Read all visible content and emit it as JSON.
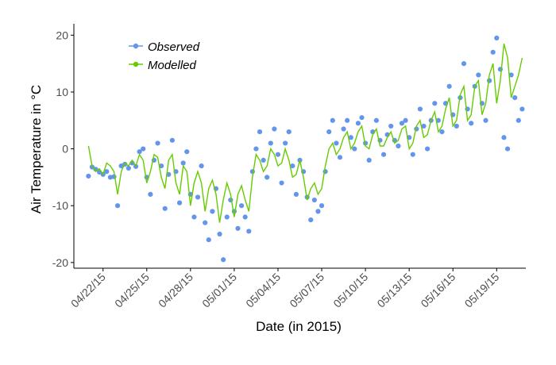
{
  "chart_data": {
    "type": "scatter",
    "title": "",
    "xlabel": "Date (in 2015)",
    "ylabel": "Air Temperature in °C",
    "x_range": [
      "2015-04-20",
      "2015-05-21"
    ],
    "ylim": [
      -21,
      22
    ],
    "x_ticks": [
      {
        "date": "2015-04-22",
        "label": "04/22/15"
      },
      {
        "date": "2015-04-25",
        "label": "04/25/15"
      },
      {
        "date": "2015-04-28",
        "label": "04/28/15"
      },
      {
        "date": "2015-05-01",
        "label": "05/01/15"
      },
      {
        "date": "2015-05-04",
        "label": "05/04/15"
      },
      {
        "date": "2015-05-07",
        "label": "05/07/15"
      },
      {
        "date": "2015-05-10",
        "label": "05/10/15"
      },
      {
        "date": "2015-05-13",
        "label": "05/13/15"
      },
      {
        "date": "2015-05-16",
        "label": "05/16/15"
      },
      {
        "date": "2015-05-19",
        "label": "05/19/15"
      }
    ],
    "y_ticks": [
      -20,
      -10,
      0,
      10,
      20
    ],
    "grid": false,
    "legend_position": "top-left",
    "series": [
      {
        "name": "Observed",
        "type": "scatter",
        "color": "#6495ED",
        "points": [
          [
            "2015-04-21 00:00",
            -4.8
          ],
          [
            "2015-04-21 06:00",
            -3.2
          ],
          [
            "2015-04-21 12:00",
            -3.6
          ],
          [
            "2015-04-21 18:00",
            -4.1
          ],
          [
            "2015-04-22 00:00",
            -4.5
          ],
          [
            "2015-04-22 06:00",
            -4.0
          ],
          [
            "2015-04-22 12:00",
            -5.0
          ],
          [
            "2015-04-22 18:00",
            -4.9
          ],
          [
            "2015-04-23 00:00",
            -10.0
          ],
          [
            "2015-04-23 06:00",
            -3.0
          ],
          [
            "2015-04-23 12:00",
            -2.7
          ],
          [
            "2015-04-23 18:00",
            -3.4
          ],
          [
            "2015-04-24 00:00",
            -2.5
          ],
          [
            "2015-04-24 06:00",
            -3.1
          ],
          [
            "2015-04-24 12:00",
            -0.5
          ],
          [
            "2015-04-24 18:00",
            0.0
          ],
          [
            "2015-04-25 00:00",
            -5.0
          ],
          [
            "2015-04-25 06:00",
            -8.0
          ],
          [
            "2015-04-25 12:00",
            -2.0
          ],
          [
            "2015-04-25 18:00",
            1.0
          ],
          [
            "2015-04-26 00:00",
            -3.0
          ],
          [
            "2015-04-26 06:00",
            -10.5
          ],
          [
            "2015-04-26 12:00",
            -4.5
          ],
          [
            "2015-04-26 18:00",
            1.5
          ],
          [
            "2015-04-27 00:00",
            -4.0
          ],
          [
            "2015-04-27 06:00",
            -9.5
          ],
          [
            "2015-04-27 12:00",
            -2.5
          ],
          [
            "2015-04-27 18:00",
            -0.5
          ],
          [
            "2015-04-28 00:00",
            -8.0
          ],
          [
            "2015-04-28 06:00",
            -12.0
          ],
          [
            "2015-04-28 12:00",
            -8.5
          ],
          [
            "2015-04-28 18:00",
            -3.0
          ],
          [
            "2015-04-29 00:00",
            -13.0
          ],
          [
            "2015-04-29 06:00",
            -16.0
          ],
          [
            "2015-04-29 12:00",
            -11.0
          ],
          [
            "2015-04-29 18:00",
            -7.0
          ],
          [
            "2015-04-30 00:00",
            -15.0
          ],
          [
            "2015-04-30 06:00",
            -19.5
          ],
          [
            "2015-04-30 12:00",
            -12.0
          ],
          [
            "2015-04-30 18:00",
            -9.0
          ],
          [
            "2015-05-01 00:00",
            -11.0
          ],
          [
            "2015-05-01 06:00",
            -14.0
          ],
          [
            "2015-05-01 12:00",
            -10.0
          ],
          [
            "2015-05-01 18:00",
            -12.0
          ],
          [
            "2015-05-02 00:00",
            -14.5
          ],
          [
            "2015-05-02 06:00",
            -4.0
          ],
          [
            "2015-05-02 12:00",
            0.0
          ],
          [
            "2015-05-02 18:00",
            3.0
          ],
          [
            "2015-05-03 00:00",
            -2.0
          ],
          [
            "2015-05-03 06:00",
            -5.0
          ],
          [
            "2015-05-03 12:00",
            1.0
          ],
          [
            "2015-05-03 18:00",
            3.5
          ],
          [
            "2015-05-04 00:00",
            -1.0
          ],
          [
            "2015-05-04 06:00",
            -6.0
          ],
          [
            "2015-05-04 12:00",
            1.0
          ],
          [
            "2015-05-04 18:00",
            3.0
          ],
          [
            "2015-05-05 00:00",
            -3.0
          ],
          [
            "2015-05-05 06:00",
            -8.0
          ],
          [
            "2015-05-05 12:00",
            -2.0
          ],
          [
            "2015-05-05 18:00",
            -4.0
          ],
          [
            "2015-05-06 00:00",
            -8.5
          ],
          [
            "2015-05-06 06:00",
            -12.5
          ],
          [
            "2015-05-06 12:00",
            -9.0
          ],
          [
            "2015-05-06 18:00",
            -11.0
          ],
          [
            "2015-05-07 00:00",
            -10.0
          ],
          [
            "2015-05-07 06:00",
            -4.0
          ],
          [
            "2015-05-07 12:00",
            3.0
          ],
          [
            "2015-05-07 18:00",
            5.0
          ],
          [
            "2015-05-08 00:00",
            1.0
          ],
          [
            "2015-05-08 06:00",
            -1.5
          ],
          [
            "2015-05-08 12:00",
            3.5
          ],
          [
            "2015-05-08 18:00",
            5.0
          ],
          [
            "2015-05-09 00:00",
            2.0
          ],
          [
            "2015-05-09 06:00",
            0.0
          ],
          [
            "2015-05-09 12:00",
            4.5
          ],
          [
            "2015-05-09 18:00",
            5.5
          ],
          [
            "2015-05-10 00:00",
            1.0
          ],
          [
            "2015-05-10 06:00",
            -2.0
          ],
          [
            "2015-05-10 12:00",
            3.0
          ],
          [
            "2015-05-10 18:00",
            5.0
          ],
          [
            "2015-05-11 00:00",
            1.5
          ],
          [
            "2015-05-11 06:00",
            -1.0
          ],
          [
            "2015-05-11 12:00",
            2.5
          ],
          [
            "2015-05-11 18:00",
            4.0
          ],
          [
            "2015-05-12 00:00",
            1.5
          ],
          [
            "2015-05-12 06:00",
            0.5
          ],
          [
            "2015-05-12 12:00",
            4.5
          ],
          [
            "2015-05-12 18:00",
            5.0
          ],
          [
            "2015-05-13 00:00",
            2.0
          ],
          [
            "2015-05-13 06:00",
            -1.0
          ],
          [
            "2015-05-13 12:00",
            3.5
          ],
          [
            "2015-05-13 18:00",
            7.0
          ],
          [
            "2015-05-14 00:00",
            4.0
          ],
          [
            "2015-05-14 06:00",
            0.0
          ],
          [
            "2015-05-14 12:00",
            5.0
          ],
          [
            "2015-05-14 18:00",
            8.0
          ],
          [
            "2015-05-15 00:00",
            5.0
          ],
          [
            "2015-05-15 06:00",
            3.0
          ],
          [
            "2015-05-15 12:00",
            8.0
          ],
          [
            "2015-05-15 18:00",
            11.0
          ],
          [
            "2015-05-16 00:00",
            6.0
          ],
          [
            "2015-05-16 06:00",
            4.0
          ],
          [
            "2015-05-16 12:00",
            9.0
          ],
          [
            "2015-05-16 18:00",
            15.0
          ],
          [
            "2015-05-17 00:00",
            7.0
          ],
          [
            "2015-05-17 06:00",
            4.5
          ],
          [
            "2015-05-17 12:00",
            11.0
          ],
          [
            "2015-05-17 18:00",
            13.0
          ],
          [
            "2015-05-18 00:00",
            8.0
          ],
          [
            "2015-05-18 06:00",
            5.0
          ],
          [
            "2015-05-18 12:00",
            12.0
          ],
          [
            "2015-05-18 18:00",
            17.0
          ],
          [
            "2015-05-19 00:00",
            19.5
          ],
          [
            "2015-05-19 06:00",
            14.0
          ],
          [
            "2015-05-19 12:00",
            2.0
          ],
          [
            "2015-05-19 18:00",
            0.0
          ],
          [
            "2015-05-20 00:00",
            13.0
          ],
          [
            "2015-05-20 06:00",
            9.0
          ],
          [
            "2015-05-20 12:00",
            5.0
          ],
          [
            "2015-05-20 18:00",
            7.0
          ]
        ]
      },
      {
        "name": "Modelled",
        "type": "line",
        "color": "#66CC00",
        "points": [
          [
            "2015-04-21 00:00",
            0.5
          ],
          [
            "2015-04-21 06:00",
            -3.0
          ],
          [
            "2015-04-21 12:00",
            -4.0
          ],
          [
            "2015-04-21 18:00",
            -3.5
          ],
          [
            "2015-04-22 00:00",
            -4.5
          ],
          [
            "2015-04-22 06:00",
            -2.5
          ],
          [
            "2015-04-22 12:00",
            -3.0
          ],
          [
            "2015-04-22 18:00",
            -4.0
          ],
          [
            "2015-04-23 00:00",
            -8.0
          ],
          [
            "2015-04-23 06:00",
            -4.0
          ],
          [
            "2015-04-23 12:00",
            -2.5
          ],
          [
            "2015-04-23 18:00",
            -3.0
          ],
          [
            "2015-04-24 00:00",
            -2.0
          ],
          [
            "2015-04-24 06:00",
            -3.0
          ],
          [
            "2015-04-24 12:00",
            -1.0
          ],
          [
            "2015-04-24 18:00",
            -2.0
          ],
          [
            "2015-04-25 00:00",
            -6.0
          ],
          [
            "2015-04-25 06:00",
            -4.0
          ],
          [
            "2015-04-25 12:00",
            -1.0
          ],
          [
            "2015-04-25 18:00",
            -1.5
          ],
          [
            "2015-04-26 00:00",
            -5.0
          ],
          [
            "2015-04-26 06:00",
            -7.0
          ],
          [
            "2015-04-26 12:00",
            -2.0
          ],
          [
            "2015-04-26 18:00",
            -1.0
          ],
          [
            "2015-04-27 00:00",
            -6.0
          ],
          [
            "2015-04-27 06:00",
            -8.0
          ],
          [
            "2015-04-27 12:00",
            -3.0
          ],
          [
            "2015-04-27 18:00",
            -4.0
          ],
          [
            "2015-04-28 00:00",
            -10.0
          ],
          [
            "2015-04-28 06:00",
            -6.0
          ],
          [
            "2015-04-28 12:00",
            -4.0
          ],
          [
            "2015-04-28 18:00",
            -6.0
          ],
          [
            "2015-04-29 00:00",
            -11.0
          ],
          [
            "2015-04-29 06:00",
            -7.0
          ],
          [
            "2015-04-29 12:00",
            -5.5
          ],
          [
            "2015-04-29 18:00",
            -8.0
          ],
          [
            "2015-04-30 00:00",
            -13.0
          ],
          [
            "2015-04-30 06:00",
            -9.0
          ],
          [
            "2015-04-30 12:00",
            -6.0
          ],
          [
            "2015-04-30 18:00",
            -8.0
          ],
          [
            "2015-05-01 00:00",
            -12.0
          ],
          [
            "2015-05-01 06:00",
            -8.0
          ],
          [
            "2015-05-01 12:00",
            -6.5
          ],
          [
            "2015-05-01 18:00",
            -9.0
          ],
          [
            "2015-05-02 00:00",
            -11.0
          ],
          [
            "2015-05-02 06:00",
            -5.0
          ],
          [
            "2015-05-02 12:00",
            -1.0
          ],
          [
            "2015-05-02 18:00",
            -2.0
          ],
          [
            "2015-05-03 00:00",
            -4.0
          ],
          [
            "2015-05-03 06:00",
            -3.0
          ],
          [
            "2015-05-03 12:00",
            0.0
          ],
          [
            "2015-05-03 18:00",
            -1.0
          ],
          [
            "2015-05-04 00:00",
            -3.0
          ],
          [
            "2015-05-04 06:00",
            -2.5
          ],
          [
            "2015-05-04 12:00",
            0.0
          ],
          [
            "2015-05-04 18:00",
            -2.0
          ],
          [
            "2015-05-05 00:00",
            -5.0
          ],
          [
            "2015-05-05 06:00",
            -4.5
          ],
          [
            "2015-05-05 12:00",
            -2.0
          ],
          [
            "2015-05-05 18:00",
            -5.0
          ],
          [
            "2015-05-06 00:00",
            -9.0
          ],
          [
            "2015-05-06 06:00",
            -7.0
          ],
          [
            "2015-05-06 12:00",
            -6.0
          ],
          [
            "2015-05-06 18:00",
            -8.0
          ],
          [
            "2015-05-07 00:00",
            -7.0
          ],
          [
            "2015-05-07 06:00",
            -3.0
          ],
          [
            "2015-05-07 12:00",
            0.0
          ],
          [
            "2015-05-07 18:00",
            1.0
          ],
          [
            "2015-05-08 00:00",
            -1.0
          ],
          [
            "2015-05-08 06:00",
            0.0
          ],
          [
            "2015-05-08 12:00",
            2.0
          ],
          [
            "2015-05-08 18:00",
            3.0
          ],
          [
            "2015-05-09 00:00",
            0.0
          ],
          [
            "2015-05-09 06:00",
            1.0
          ],
          [
            "2015-05-09 12:00",
            3.0
          ],
          [
            "2015-05-09 18:00",
            4.0
          ],
          [
            "2015-05-10 00:00",
            0.5
          ],
          [
            "2015-05-10 06:00",
            0.0
          ],
          [
            "2015-05-10 12:00",
            2.5
          ],
          [
            "2015-05-10 18:00",
            3.5
          ],
          [
            "2015-05-11 00:00",
            0.5
          ],
          [
            "2015-05-11 06:00",
            0.5
          ],
          [
            "2015-05-11 12:00",
            2.0
          ],
          [
            "2015-05-11 18:00",
            3.0
          ],
          [
            "2015-05-12 00:00",
            1.0
          ],
          [
            "2015-05-12 06:00",
            1.5
          ],
          [
            "2015-05-12 12:00",
            3.5
          ],
          [
            "2015-05-12 18:00",
            4.0
          ],
          [
            "2015-05-13 00:00",
            0.0
          ],
          [
            "2015-05-13 06:00",
            1.0
          ],
          [
            "2015-05-13 12:00",
            4.0
          ],
          [
            "2015-05-13 18:00",
            5.0
          ],
          [
            "2015-05-14 00:00",
            2.0
          ],
          [
            "2015-05-14 06:00",
            2.5
          ],
          [
            "2015-05-14 12:00",
            5.0
          ],
          [
            "2015-05-14 18:00",
            6.5
          ],
          [
            "2015-05-15 00:00",
            3.0
          ],
          [
            "2015-05-15 06:00",
            4.0
          ],
          [
            "2015-05-15 12:00",
            7.0
          ],
          [
            "2015-05-15 18:00",
            9.0
          ],
          [
            "2015-05-16 00:00",
            4.0
          ],
          [
            "2015-05-16 06:00",
            5.0
          ],
          [
            "2015-05-16 12:00",
            9.5
          ],
          [
            "2015-05-16 18:00",
            11.0
          ],
          [
            "2015-05-17 00:00",
            5.0
          ],
          [
            "2015-05-17 06:00",
            6.0
          ],
          [
            "2015-05-17 12:00",
            11.0
          ],
          [
            "2015-05-17 18:00",
            12.0
          ],
          [
            "2015-05-18 00:00",
            6.0
          ],
          [
            "2015-05-18 06:00",
            8.0
          ],
          [
            "2015-05-18 12:00",
            13.0
          ],
          [
            "2015-05-18 18:00",
            15.0
          ],
          [
            "2015-05-19 00:00",
            8.0
          ],
          [
            "2015-05-19 06:00",
            12.0
          ],
          [
            "2015-05-19 12:00",
            18.5
          ],
          [
            "2015-05-19 18:00",
            16.0
          ],
          [
            "2015-05-20 00:00",
            9.0
          ],
          [
            "2015-05-20 06:00",
            11.0
          ],
          [
            "2015-05-20 12:00",
            13.0
          ],
          [
            "2015-05-20 18:00",
            16.0
          ]
        ]
      }
    ]
  }
}
